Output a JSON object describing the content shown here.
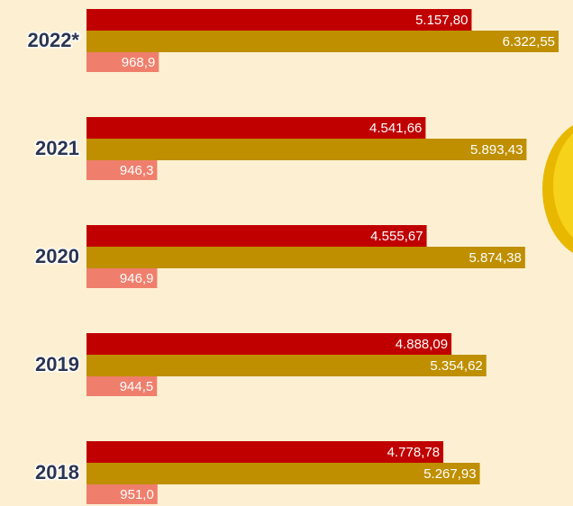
{
  "chart_data": {
    "type": "bar",
    "orientation": "horizontal",
    "categories": [
      "2022*",
      "2021",
      "2020",
      "2019",
      "2018"
    ],
    "series": [
      {
        "color": "#c00000",
        "values": [
          5157.8,
          4541.66,
          4555.67,
          4888.09,
          4778.78
        ],
        "value_labels": [
          "5.157,80",
          "4.541,66",
          "4.555,67",
          "4.888,09",
          "4.778,78"
        ]
      },
      {
        "color": "#bf8f00",
        "values": [
          6322.55,
          5893.43,
          5874.38,
          5354.62,
          5267.93
        ],
        "value_labels": [
          "6.322,55",
          "5.893,43",
          "5.874,38",
          "5.354,62",
          "5.267,93"
        ]
      },
      {
        "color": "#ef7f6c",
        "values": [
          968.9,
          946.3,
          946.9,
          944.5,
          951
        ],
        "value_labels": [
          "968,9",
          "946,3",
          "946,9",
          "944,5",
          "951,0"
        ]
      }
    ]
  }
}
